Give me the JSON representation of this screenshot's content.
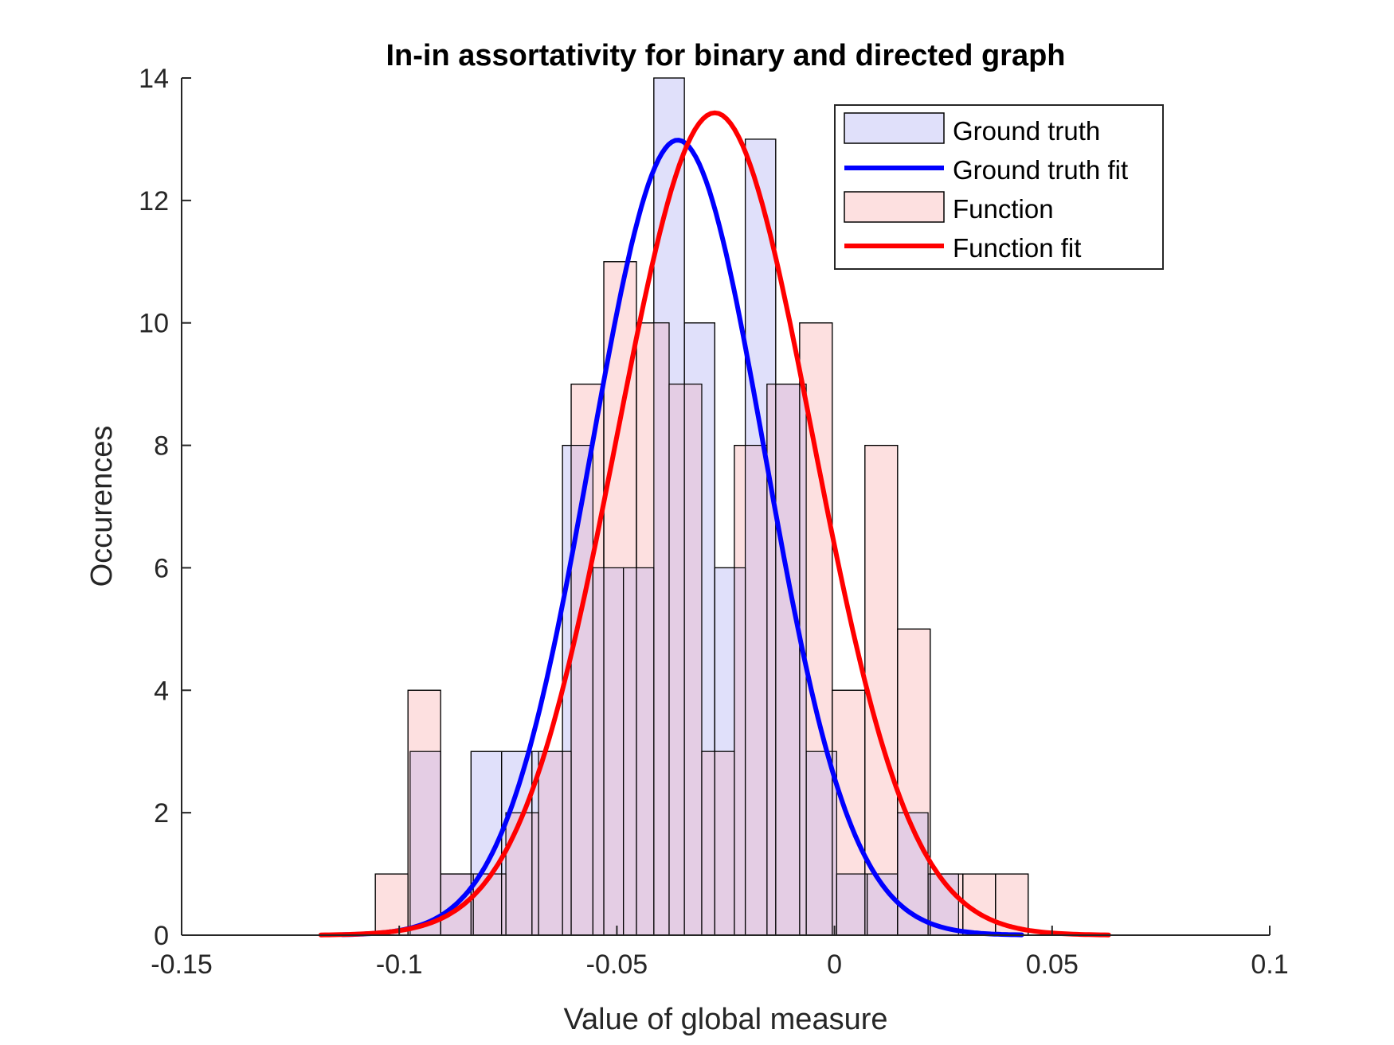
{
  "chart_data": {
    "type": "histogram",
    "title": "In-in assortativity for binary and directed graph",
    "xlabel": "Value of global measure",
    "ylabel": "Occurences",
    "xlim": [
      -0.15,
      0.1
    ],
    "ylim": [
      0,
      14
    ],
    "xticks": [
      -0.15,
      -0.1,
      -0.05,
      0,
      0.05,
      0.1
    ],
    "xtick_labels": [
      "-0.15",
      "-0.1",
      "-0.05",
      "0",
      "0.05",
      "0.1"
    ],
    "yticks": [
      0,
      2,
      4,
      6,
      8,
      10,
      12,
      14
    ],
    "ytick_labels": [
      "0",
      "2",
      "4",
      "6",
      "8",
      "10",
      "12",
      "14"
    ],
    "grid": false,
    "legend_position": "top-right",
    "colors": {
      "ground_truth_bar": "#e0e0fa",
      "function_bar": "#fde0e0",
      "overlap_bar": "#e4cde4",
      "ground_truth_fit": "#0000ff",
      "function_fit": "#ff0000",
      "bar_edge": "#000000",
      "axis": "#262626"
    },
    "series": [
      {
        "name": "Ground truth",
        "kind": "histogram",
        "bin_edges": [
          -0.0975,
          -0.0905,
          -0.0835,
          -0.0765,
          -0.0695,
          -0.0625,
          -0.0555,
          -0.0485,
          -0.0415,
          -0.0345,
          -0.0275,
          -0.0205,
          -0.0135,
          -0.0065,
          0.0005,
          0.0075,
          0.0145,
          0.0215,
          0.0285,
          0.0355
        ],
        "counts": [
          3,
          1,
          3,
          3,
          3,
          8,
          6,
          6,
          14,
          10,
          6,
          13,
          9,
          3,
          1,
          1,
          2,
          1,
          0
        ]
      },
      {
        "name": "Ground truth fit",
        "kind": "normal_fit",
        "mean": -0.036,
        "sd": 0.02,
        "x_range": [
          -0.113,
          0.043
        ]
      },
      {
        "name": "Function",
        "kind": "histogram",
        "bin_edges": [
          -0.1055,
          -0.098,
          -0.0905,
          -0.083,
          -0.0755,
          -0.068,
          -0.0605,
          -0.053,
          -0.0455,
          -0.038,
          -0.0305,
          -0.023,
          -0.0155,
          -0.008,
          -0.0005,
          0.007,
          0.0145,
          0.022,
          0.0295,
          0.037,
          0.0445
        ],
        "counts": [
          1,
          4,
          1,
          1,
          2,
          3,
          9,
          11,
          10,
          9,
          3,
          8,
          9,
          10,
          4,
          8,
          5,
          1,
          1,
          1
        ]
      },
      {
        "name": "Function fit",
        "kind": "normal_fit",
        "mean": -0.0275,
        "sd": 0.0225,
        "x_range": [
          -0.118,
          0.063
        ]
      }
    ]
  }
}
